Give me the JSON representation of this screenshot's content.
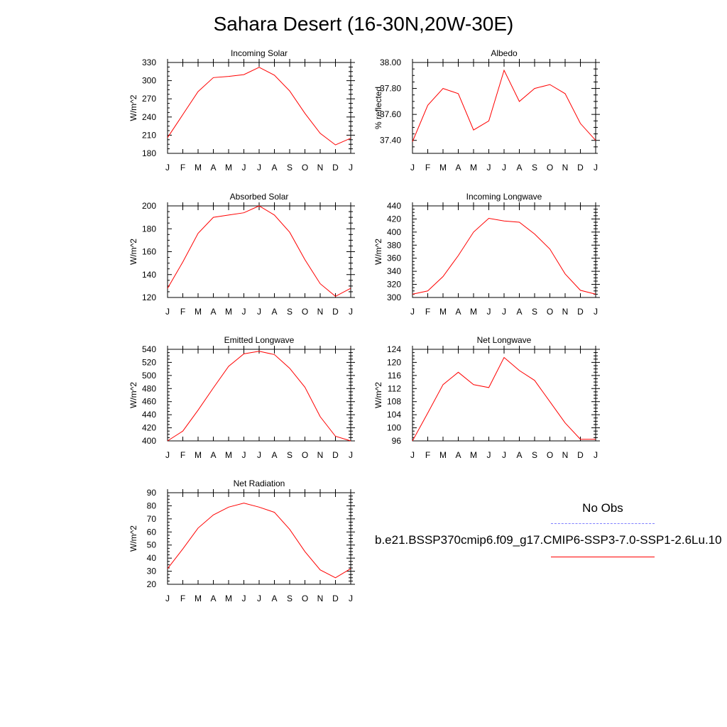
{
  "title": "Sahara Desert (16-30N,20W-30E)",
  "legend": {
    "obs_label": "No Obs",
    "case_label": "b.e21.BSSP370cmip6.f09_g17.CMIP6-SSP3-7.0-SSP1-2.6Lu.10",
    "obs_color": "#7f7fff",
    "case_color": "#ff0000"
  },
  "chart_data": [
    {
      "type": "line",
      "title": "Incoming Solar",
      "ylabel": "W/m^2",
      "x": [
        "J",
        "F",
        "M",
        "A",
        "M",
        "J",
        "J",
        "A",
        "S",
        "O",
        "N",
        "D",
        "J"
      ],
      "ylim": [
        180,
        330
      ],
      "yticks": [
        "180",
        "210",
        "240",
        "270",
        "300",
        "330"
      ],
      "values": [
        206,
        244,
        282,
        305,
        307,
        310,
        322,
        309,
        283,
        246,
        213,
        194,
        205
      ]
    },
    {
      "type": "line",
      "title": "Albedo",
      "ylabel": "% reflected",
      "x": [
        "J",
        "F",
        "M",
        "A",
        "M",
        "J",
        "J",
        "A",
        "S",
        "O",
        "N",
        "D",
        "J"
      ],
      "ylim": [
        37.3,
        38.0
      ],
      "yticks": [
        "37.40",
        "37.60",
        "37.80",
        "38.00"
      ],
      "values": [
        37.39,
        37.67,
        37.8,
        37.76,
        37.48,
        37.55,
        37.94,
        37.7,
        37.8,
        37.83,
        37.76,
        37.53,
        37.4
      ]
    },
    {
      "type": "line",
      "title": "Absorbed Solar",
      "ylabel": "W/m^2",
      "x": [
        "J",
        "F",
        "M",
        "A",
        "M",
        "J",
        "J",
        "A",
        "S",
        "O",
        "N",
        "D",
        "J"
      ],
      "ylim": [
        120,
        200
      ],
      "yticks": [
        "120",
        "140",
        "160",
        "180",
        "200"
      ],
      "values": [
        128,
        151,
        176,
        190,
        192,
        194,
        200,
        192,
        177,
        153,
        132,
        121,
        128
      ]
    },
    {
      "type": "line",
      "title": "Incoming Longwave",
      "ylabel": "W/m^2",
      "x": [
        "J",
        "F",
        "M",
        "A",
        "M",
        "J",
        "J",
        "A",
        "S",
        "O",
        "N",
        "D",
        "J"
      ],
      "ylim": [
        300,
        440
      ],
      "yticks": [
        "300",
        "320",
        "340",
        "360",
        "380",
        "400",
        "420",
        "440"
      ],
      "values": [
        305,
        310,
        332,
        364,
        400,
        421,
        417,
        415,
        397,
        374,
        336,
        311,
        305
      ]
    },
    {
      "type": "line",
      "title": "Emitted Longwave",
      "ylabel": "W/m^2",
      "x": [
        "J",
        "F",
        "M",
        "A",
        "M",
        "J",
        "J",
        "A",
        "S",
        "O",
        "N",
        "D",
        "J"
      ],
      "ylim": [
        400,
        540
      ],
      "yticks": [
        "400",
        "420",
        "440",
        "460",
        "480",
        "500",
        "520",
        "540"
      ],
      "values": [
        400,
        415,
        447,
        481,
        514,
        533,
        537,
        532,
        511,
        482,
        437,
        407,
        400
      ]
    },
    {
      "type": "line",
      "title": "Net Longwave",
      "ylabel": "W/m^2",
      "x": [
        "J",
        "F",
        "M",
        "A",
        "M",
        "J",
        "J",
        "A",
        "S",
        "O",
        "N",
        "D",
        "J"
      ],
      "ylim": [
        96,
        124
      ],
      "yticks": [
        "96",
        "100",
        "104",
        "108",
        "112",
        "116",
        "120",
        "124"
      ],
      "values": [
        96.0,
        104.5,
        113.2,
        117.0,
        113.2,
        112.3,
        121.5,
        117.5,
        114.5,
        108.0,
        101.5,
        96.5,
        96.5
      ]
    },
    {
      "type": "line",
      "title": "Net Radiation",
      "ylabel": "W/m^2",
      "x": [
        "J",
        "F",
        "M",
        "A",
        "M",
        "J",
        "J",
        "A",
        "S",
        "O",
        "N",
        "D",
        "J"
      ],
      "ylim": [
        20,
        90
      ],
      "yticks": [
        "20",
        "30",
        "40",
        "50",
        "60",
        "70",
        "80",
        "90"
      ],
      "values": [
        32,
        47,
        63,
        73,
        79,
        82,
        79,
        75,
        62,
        45,
        31,
        25,
        32
      ]
    }
  ]
}
